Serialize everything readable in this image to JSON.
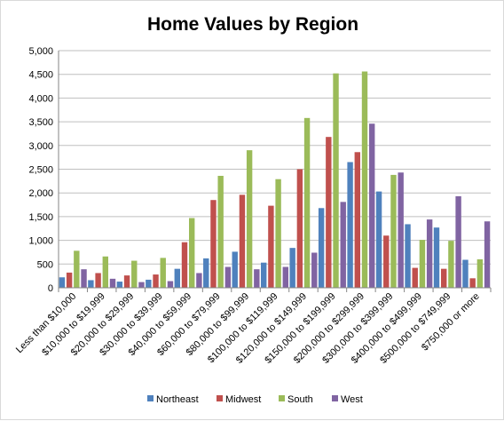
{
  "chart_data": {
    "type": "bar",
    "title": "Home Values by Region",
    "xlabel": "",
    "ylabel": "",
    "ylim": [
      0,
      5000
    ],
    "yticks": [
      0,
      500,
      1000,
      1500,
      2000,
      2500,
      3000,
      3500,
      4000,
      4500,
      5000
    ],
    "ytick_labels": [
      "0",
      "500",
      "1,000",
      "1,500",
      "2,000",
      "2,500",
      "3,000",
      "3,500",
      "4,000",
      "4,500",
      "5,000"
    ],
    "grid": true,
    "legend_position": "bottom",
    "categories": [
      "Less than $10,000",
      "$10,000 to $19,999",
      "$20,000 to $29,999",
      "$30,000 to $39,999",
      "$40,000 to $59,999",
      "$60,000 to $79,999",
      "$80,000 to $99,999",
      "$100,000 to $119,999",
      "$120,000 to $149,999",
      "$150,000 to $199,999",
      "$200,000 to $299,999",
      "$300,000 to $399,999",
      "$400,000 to $499,999",
      "$500,000 to $749,999",
      "$750,000 or more"
    ],
    "series": [
      {
        "name": "Northeast",
        "color": "#4f81bd",
        "values": [
          220,
          160,
          130,
          170,
          400,
          620,
          760,
          530,
          840,
          1680,
          2650,
          2030,
          1340,
          1270,
          590
        ]
      },
      {
        "name": "Midwest",
        "color": "#c0504d",
        "values": [
          320,
          310,
          260,
          280,
          960,
          1850,
          1960,
          1730,
          2500,
          3180,
          2860,
          1100,
          420,
          400,
          200
        ]
      },
      {
        "name": "South",
        "color": "#9bbb59",
        "values": [
          780,
          660,
          570,
          630,
          1470,
          2360,
          2900,
          2290,
          3580,
          4520,
          4560,
          2380,
          1010,
          990,
          600
        ]
      },
      {
        "name": "West",
        "color": "#8064a2",
        "values": [
          390,
          190,
          120,
          140,
          310,
          440,
          390,
          440,
          740,
          1810,
          3460,
          2430,
          1440,
          1930,
          1400
        ]
      }
    ]
  }
}
